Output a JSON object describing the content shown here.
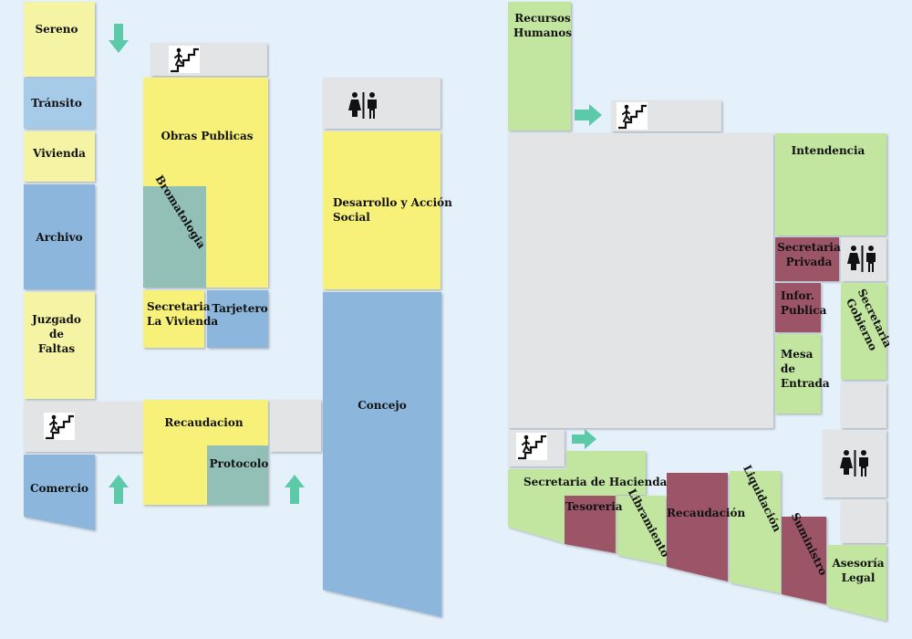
{
  "colors": {
    "background": "#e4f0fa",
    "yellow": "#f7f17a",
    "pale_yellow": "#f4f4a4",
    "blue": "#8cb6dc",
    "pale_blue": "#a6cbe9",
    "teal": "#93c0b6",
    "green": "#c2e6a0",
    "maroon": "#9b5566",
    "gray": "#e3e4e6",
    "arrow": "#5ccaa9"
  },
  "left_building": {
    "rooms": {
      "sereno": "Sereno",
      "transito": "Tránsito",
      "vivienda": "Vivienda",
      "archivo": "Archivo",
      "juzgado": "Juzgado de\nFaltas",
      "comercio": "Comercio",
      "obras": "Obras Publicas",
      "bromatologia": "Bromatologia",
      "secretaria_vivienda": "Secretaria\nLa Vivienda",
      "tarjetero": "Tarjetero",
      "recaudacion": "Recaudacion",
      "protocolo": "Protocolo",
      "desarrollo": "Desarrollo y Acción\nSocial",
      "concejo": "Concejo"
    }
  },
  "right_building": {
    "rooms": {
      "recursos": "Recursos\nHumanos",
      "intendencia": "Intendencia",
      "secretaria_privada": "Secretaria\nPrivada",
      "infor": "Infor.\nPublica",
      "secretaria_gobierno": "Secretaria\nGobierno",
      "mesa": "Mesa\nde\nEntrada",
      "secretaria_hacienda": "Secretaria de Hacienda",
      "tesoreria": "Tesoreria",
      "libramiento": "Libramiento",
      "recaudacion": "Recaudación",
      "liquidacion": "Liquidación",
      "suministro": "Suministro",
      "asesoria": "Asesoría\nLegal"
    }
  },
  "icons": [
    "stairs-icon",
    "restroom-icon",
    "arrow-down-icon",
    "arrow-up-icon",
    "arrow-right-icon"
  ]
}
